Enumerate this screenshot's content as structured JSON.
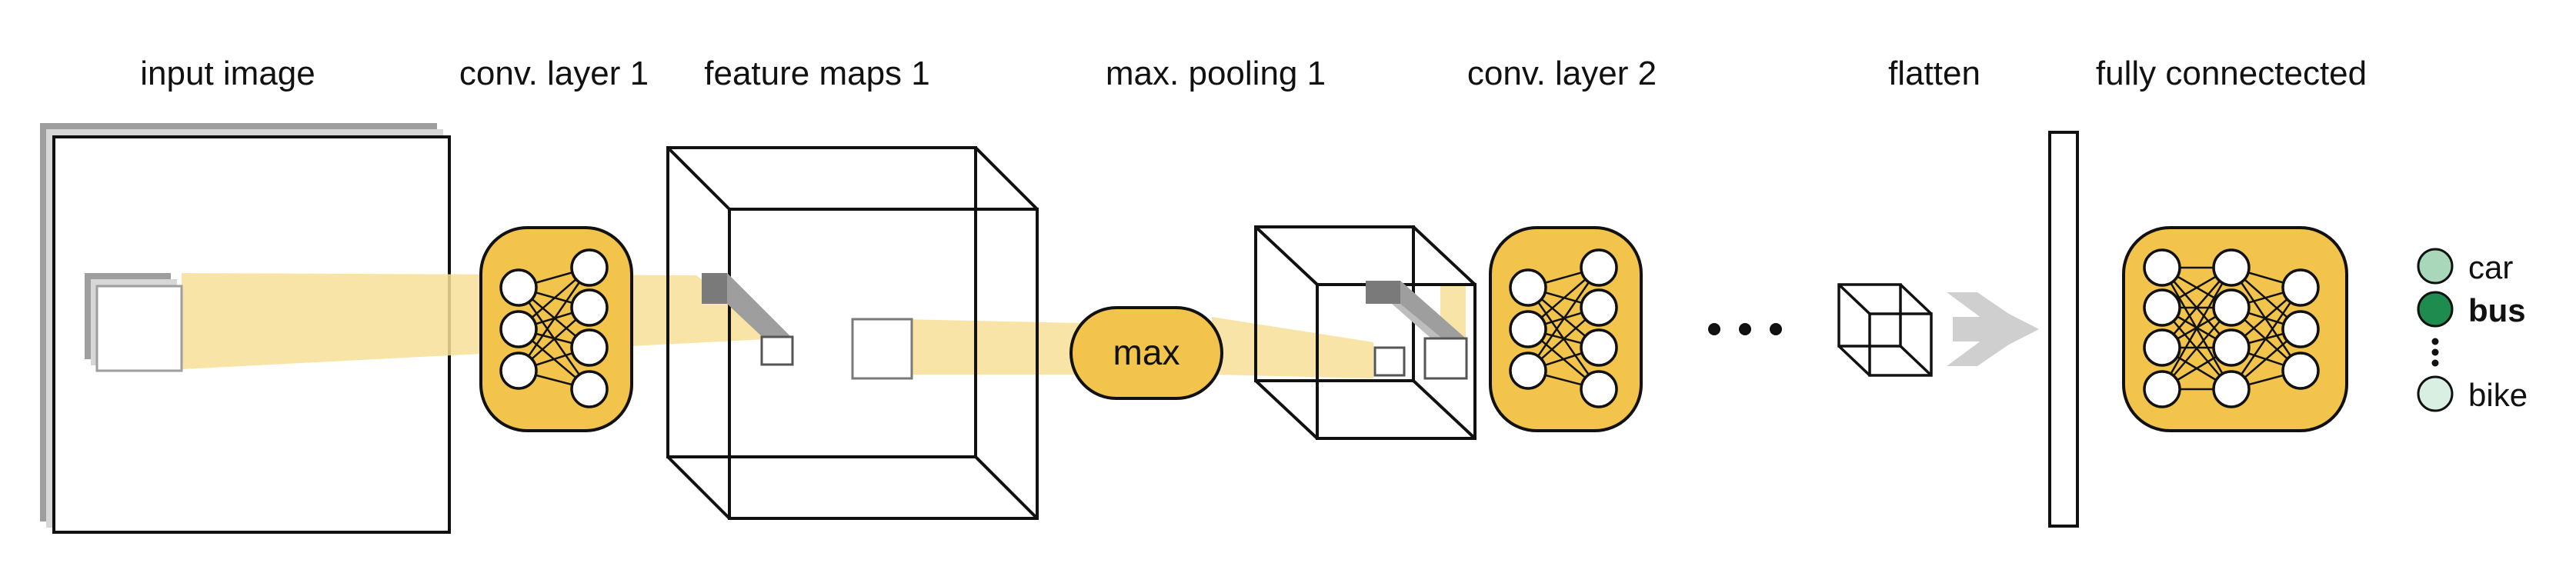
{
  "stages": {
    "input_image": "input image",
    "conv_layer_1": "conv. layer 1",
    "feature_maps_1": "feature maps 1",
    "max_pooling_1": "max. pooling 1",
    "conv_layer_2": "conv. layer 2",
    "flatten": "flatten",
    "fully_connected": "fully connectected"
  },
  "max_op": "max",
  "classes": [
    {
      "label": "car",
      "color": "#a8d8b9",
      "selected": false
    },
    {
      "label": "bus",
      "color": "#1e8c4e",
      "selected": true
    },
    {
      "label": "bike",
      "color": "#d9efe1",
      "selected": false
    }
  ],
  "colors": {
    "accent": "#f2c44c",
    "accent_fill": "#f7df96",
    "stroke": "#111111",
    "shadow_gray": "#9e9e9e",
    "arrow_gray": "#cfcfcf"
  }
}
